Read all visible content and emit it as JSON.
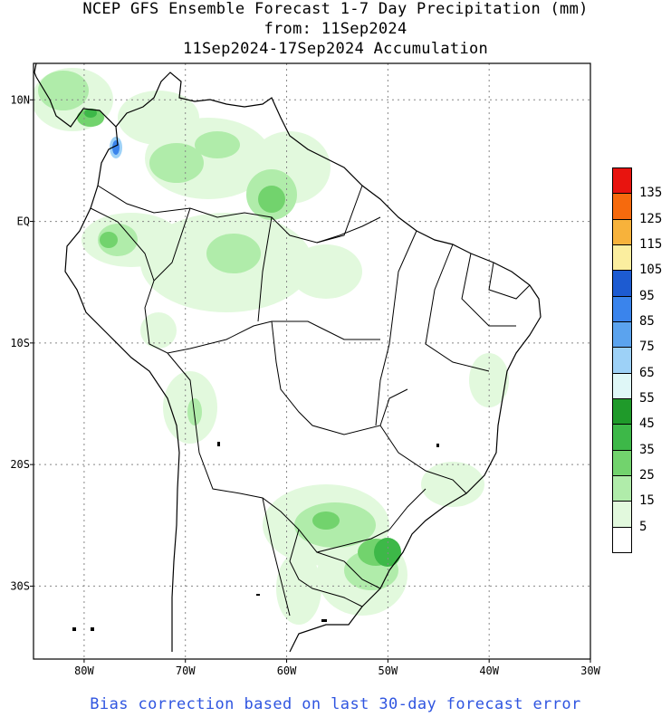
{
  "title": {
    "line1": "NCEP GFS Ensemble Forecast 1-7 Day Precipitation (mm)",
    "line2": "from: 11Sep2024",
    "line3": "11Sep2024-17Sep2024 Accumulation"
  },
  "axes": {
    "lat_labels": [
      "10N",
      "EQ",
      "10S",
      "20S",
      "30S"
    ],
    "lon_labels": [
      "80W",
      "70W",
      "60W",
      "50W",
      "40W",
      "30W"
    ],
    "lat_values": [
      10,
      0,
      -10,
      -20,
      -30
    ],
    "lon_values": [
      -80,
      -70,
      -60,
      -50,
      -40,
      -30
    ],
    "lon_range": [
      -85,
      -30
    ],
    "lat_range": [
      -36,
      13
    ],
    "grid": "dotted"
  },
  "colorbar": {
    "labels": [
      "135",
      "125",
      "115",
      "105",
      "95",
      "85",
      "75",
      "65",
      "55",
      "45",
      "35",
      "25",
      "15",
      "5"
    ],
    "colors": [
      "#e8140f",
      "#f66a0d",
      "#f7b23b",
      "#fbee9f",
      "#1d5bd1",
      "#3a84ec",
      "#5ba3ee",
      "#9dd1f7",
      "#dff7f7",
      "#1f9a2a",
      "#3db848",
      "#72d36d",
      "#b0ecaa",
      "#e2f9dd",
      "#ffffff"
    ]
  },
  "footer": "Bias correction based on last 30-day forecast error"
}
